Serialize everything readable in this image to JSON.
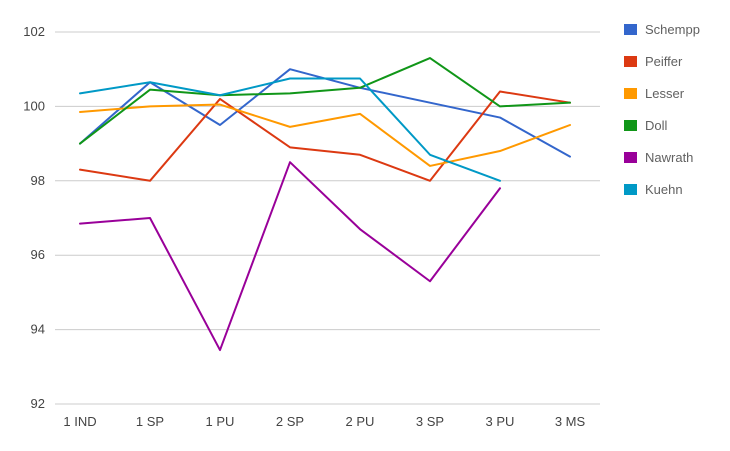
{
  "chart_data": {
    "type": "line",
    "title": "",
    "xlabel": "",
    "ylabel": "",
    "categories": [
      "1 IND",
      "1 SP",
      "1 PU",
      "2 SP",
      "2 PU",
      "3 SP",
      "3 PU",
      "3 MS"
    ],
    "series": [
      {
        "name": "Schempp",
        "color": "#3366cc",
        "values": [
          99.0,
          100.65,
          99.5,
          101.0,
          100.5,
          100.1,
          99.7,
          98.65
        ]
      },
      {
        "name": "Peiffer",
        "color": "#dc3912",
        "values": [
          98.3,
          98.0,
          100.2,
          98.9,
          98.7,
          98.0,
          100.4,
          100.1
        ]
      },
      {
        "name": "Lesser",
        "color": "#ff9900",
        "values": [
          99.85,
          100.0,
          100.05,
          99.45,
          99.8,
          98.4,
          98.8,
          99.5
        ]
      },
      {
        "name": "Doll",
        "color": "#109618",
        "values": [
          99.0,
          100.45,
          100.3,
          100.35,
          100.5,
          101.3,
          100.0,
          100.1
        ]
      },
      {
        "name": "Nawrath",
        "color": "#990099",
        "values": [
          96.85,
          97.0,
          93.45,
          98.5,
          96.7,
          95.3,
          97.8,
          null
        ]
      },
      {
        "name": "Kuehn",
        "color": "#0099c6",
        "values": [
          100.35,
          100.65,
          100.3,
          100.75,
          100.75,
          98.7,
          98.0,
          null
        ]
      }
    ],
    "ylim": [
      92,
      102
    ],
    "yticks": [
      92,
      94,
      96,
      98,
      100,
      102
    ],
    "grid": true,
    "legend_position": "right",
    "colors": {
      "gridline": "#cccccc",
      "axis_text": "#444444",
      "legend_text": "#616161",
      "background": "#ffffff"
    }
  }
}
